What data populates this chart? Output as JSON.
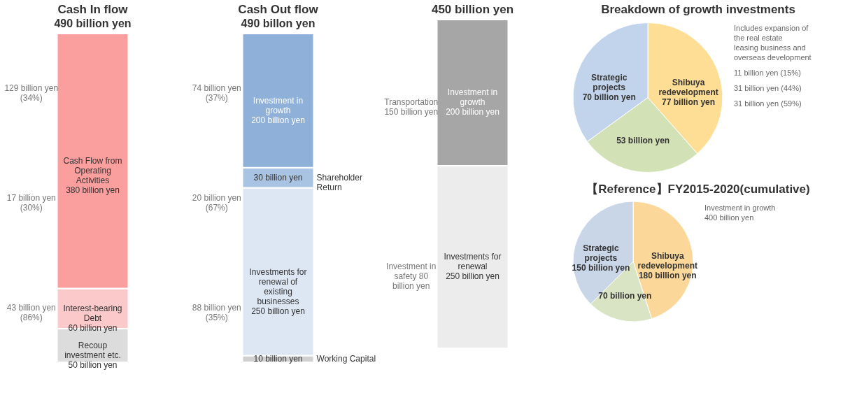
{
  "chart_data": [
    {
      "type": "bar",
      "title": "Cash In flow",
      "subtitle": "490 billion yen",
      "categories": [
        null
      ],
      "stacked": true,
      "tick_labels": false,
      "series": [
        {
          "name": "Recoup investment etc.",
          "color": "#dcdcdc",
          "values": [
            50
          ],
          "value_labels": [
            "50 billion yen"
          ]
        },
        {
          "name": "Interest-bearing Debt",
          "color": "#fbc9c9",
          "values": [
            60
          ],
          "value_labels": [
            "60 billion yen"
          ]
        },
        {
          "name": "Cash Flow from Operating Activities",
          "color": "#fa9e9e",
          "values": [
            380
          ],
          "value_labels": [
            "380 billion yen"
          ]
        }
      ],
      "annotations": [
        "129 billion yen (34%)",
        "17 billion yen (30%)",
        "43 billion yen (86%)"
      ]
    },
    {
      "type": "bar",
      "title": "Cash Out flow",
      "subtitle": "490 billon yen",
      "categories": [
        null
      ],
      "stacked": true,
      "tick_labels": false,
      "series": [
        {
          "name": "Working Capital",
          "color": "#d0d0d0",
          "values": [
            10
          ],
          "value_labels": [
            "10 billion yen"
          ]
        },
        {
          "name": "Investments for renewal of existing businesses",
          "color": "#dde7f3",
          "values": [
            250
          ],
          "value_labels": [
            "250 billion yen"
          ]
        },
        {
          "name": "Shareholder Return",
          "color": "#a9c3e3",
          "values": [
            30
          ],
          "value_labels": [
            "30 billion yen"
          ]
        },
        {
          "name": "Investment in growth",
          "color": "#8fb0d8",
          "values": [
            200
          ],
          "value_labels": [
            "200 billion yen"
          ]
        }
      ],
      "annotations": [
        "74 billion yen (37%)",
        "20 billion yen (67%)",
        "88 billion yen (35%)"
      ]
    },
    {
      "type": "bar",
      "title": "450 billion yen",
      "categories": [
        null
      ],
      "stacked": true,
      "tick_labels": false,
      "series": [
        {
          "name": "Investments for renewal",
          "color": "#ececec",
          "values": [
            250
          ],
          "value_labels": [
            "250 billion yen"
          ]
        },
        {
          "name": "Investment in growth",
          "color": "#a6a6a6",
          "values": [
            200
          ],
          "value_labels": [
            "200 billion yen"
          ]
        }
      ],
      "annotations": [
        "Transportation 150 billion yen",
        "Investment in safety 80 billion yen"
      ]
    },
    {
      "type": "pie",
      "title": "Breakdown of growth investments",
      "categories": [
        "Shibuya redevelopment",
        null,
        "Strategic projects"
      ],
      "values": [
        77,
        53,
        70
      ],
      "value_labels": [
        "77 billion yen",
        "53 billion yen",
        "70 billion yen"
      ],
      "colors": [
        "#fedd94",
        "#d3e2b6",
        "#c2d4ec"
      ],
      "annotations": [
        "Includes expansion of the real estate leasing business and overseas development",
        "11 billion yen (15%)",
        "31 billion yen (44%)",
        "31 billion yen (59%)"
      ]
    },
    {
      "type": "pie",
      "title": "【Reference】FY2015-2020(cumulative)",
      "categories": [
        "Shibuya redevelopment",
        null,
        "Strategic projects"
      ],
      "values": [
        180,
        70,
        150
      ],
      "value_labels": [
        "180 billion yen",
        "70 billion yen",
        "150 billion yen"
      ],
      "colors": [
        "#fbd89a",
        "#d9e4c4",
        "#c9d6e8"
      ],
      "annotations": [
        "Investment in growth 400 billion yen"
      ]
    }
  ]
}
